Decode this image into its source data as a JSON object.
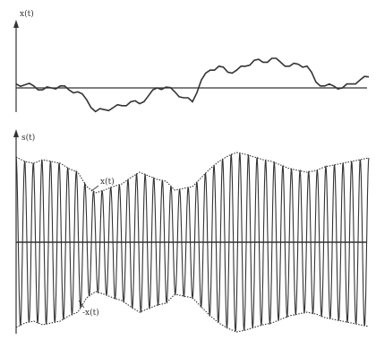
{
  "top_panel": {
    "axis_label": "x(t)"
  },
  "bottom_panel": {
    "axis_label": "s(t)",
    "envelope_upper_label": "x(t)",
    "envelope_lower_label": "-x(t)"
  },
  "colors": {
    "ink": "#333333",
    "background": "#ffffff"
  },
  "chart_data": {
    "type": "line",
    "panels": [
      {
        "name": "top",
        "x": [
          0,
          1,
          2,
          3,
          4,
          5,
          6,
          7,
          8,
          9,
          10,
          11,
          12,
          13,
          14,
          15,
          16,
          17,
          18,
          19,
          20,
          21,
          22,
          23,
          24,
          25,
          26,
          27,
          28,
          29,
          30,
          31,
          32,
          33,
          34,
          35,
          36,
          37,
          38,
          39,
          40
        ],
        "values": [
          0.1,
          0.08,
          0.05,
          -0.05,
          0.0,
          0.05,
          -0.05,
          -0.1,
          -0.3,
          -0.6,
          -0.55,
          -0.5,
          -0.45,
          -0.35,
          -0.4,
          -0.2,
          0.0,
          0.02,
          -0.1,
          -0.25,
          -0.35,
          0.2,
          0.45,
          0.55,
          0.4,
          0.45,
          0.55,
          0.7,
          0.65,
          0.75,
          0.65,
          0.55,
          0.6,
          0.55,
          0.15,
          0.05,
          0.05,
          0.0,
          0.1,
          0.2,
          0.28
        ]
      },
      {
        "name": "bottom",
        "x": [
          0,
          1,
          2,
          3,
          4,
          5,
          6,
          7,
          8,
          9,
          10,
          11,
          12,
          13,
          14,
          15,
          16,
          17,
          18,
          19,
          20,
          21,
          22,
          23,
          24,
          25,
          26,
          27,
          28,
          29,
          30,
          31,
          32,
          33,
          34,
          35,
          36,
          37,
          38,
          39,
          40
        ],
        "envelope": [
          0.95,
          0.9,
          0.88,
          0.92,
          0.9,
          0.88,
          0.82,
          0.78,
          0.62,
          0.55,
          0.58,
          0.62,
          0.65,
          0.72,
          0.78,
          0.74,
          0.7,
          0.68,
          0.58,
          0.6,
          0.62,
          0.72,
          0.82,
          0.9,
          0.96,
          1.0,
          0.98,
          0.95,
          0.92,
          0.9,
          0.86,
          0.82,
          0.8,
          0.78,
          0.8,
          0.84,
          0.86,
          0.88,
          0.9,
          0.92,
          0.94
        ],
        "carrier_cycles": 41
      }
    ]
  }
}
